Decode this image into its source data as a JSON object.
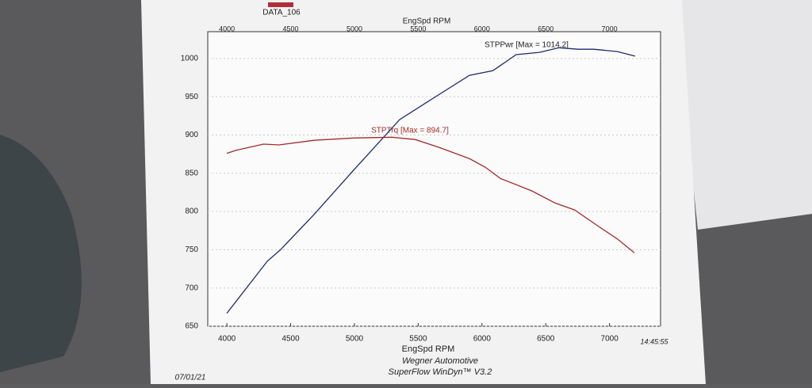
{
  "chart_data": {
    "type": "line",
    "run_label": "DATA_106",
    "run_color": "#b0303a",
    "x_label": "EngSpd RPM",
    "annotations": [
      "STPPwr [Max = 1014.2]",
      "STPTrq [Max = 894.7]"
    ],
    "footer": [
      "Wegner Automotive",
      "SuperFlow WinDyn™ V3.2"
    ],
    "time": "14:45:55",
    "date": "07/01/21",
    "xlim": [
      3850,
      7400
    ],
    "xticks": [
      4000,
      4500,
      5000,
      5500,
      6000,
      6500,
      7000
    ],
    "ylim": [
      650,
      1035
    ],
    "yticks": [
      650,
      700,
      750,
      800,
      850,
      900,
      950,
      1000
    ],
    "grid": true,
    "series": [
      {
        "name": "STPPwr",
        "color": "#1c2a6e",
        "x": [
          4000,
          4317,
          4420,
          4683,
          4988,
          5354,
          5598,
          5902,
          6085,
          6268,
          6451,
          6604,
          6756,
          6878,
          7061,
          7200
        ],
        "values": [
          667,
          735,
          750,
          796,
          853,
          920,
          946,
          978,
          984,
          1005,
          1008,
          1014,
          1012,
          1012,
          1009,
          1003
        ]
      },
      {
        "name": "STPTrq",
        "color": "#a32b2b",
        "x": [
          4000,
          4073,
          4287,
          4409,
          4683,
          4988,
          5293,
          5476,
          5659,
          5902,
          6024,
          6146,
          6390,
          6573,
          6726,
          6909,
          7061,
          7195
        ],
        "values": [
          876,
          880,
          888,
          887,
          893,
          896,
          897,
          894,
          884,
          869,
          858,
          843,
          827,
          811,
          802,
          781,
          764,
          746
        ]
      }
    ]
  }
}
